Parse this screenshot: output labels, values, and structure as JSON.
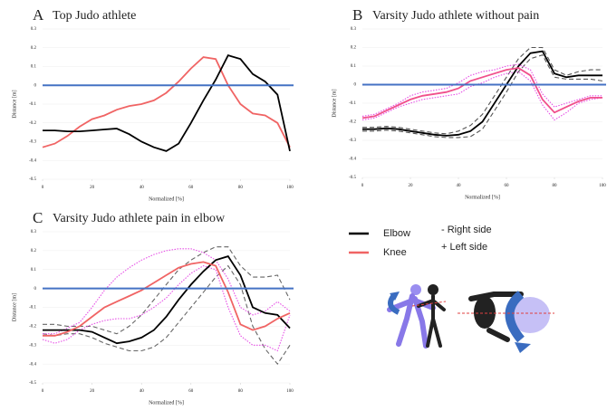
{
  "chart_data": [
    {
      "type": "line",
      "label": "A",
      "title": "Top Judo athlete",
      "x_label": "Normalized [%]",
      "y_label": "Distance [m]",
      "x": [
        0,
        5,
        10,
        15,
        20,
        25,
        30,
        35,
        40,
        45,
        50,
        55,
        60,
        65,
        70,
        75,
        80,
        85,
        90,
        95,
        100
      ],
      "xlim": [
        0,
        100
      ],
      "xticks": [
        0,
        20,
        40,
        60,
        80,
        100
      ],
      "ylim": [
        -0.5,
        0.3
      ],
      "yticks": [
        -0.5,
        -0.4,
        -0.3,
        -0.2,
        -0.1,
        0,
        0.1,
        0.2,
        0.3
      ],
      "grid": true,
      "reference_lines": [
        {
          "value": 0,
          "color": "#4472c4"
        }
      ],
      "series": [
        {
          "color": "#f06464",
          "style": "solid",
          "values": [
            -0.33,
            -0.31,
            -0.27,
            -0.22,
            -0.18,
            -0.16,
            -0.13,
            -0.11,
            -0.1,
            -0.08,
            -0.04,
            0.02,
            0.09,
            0.15,
            0.14,
            0.0,
            -0.1,
            -0.15,
            -0.16,
            -0.2,
            -0.33
          ]
        },
        {
          "color": "#000000",
          "style": "solid",
          "values": [
            -0.24,
            -0.24,
            -0.245,
            -0.245,
            -0.24,
            -0.235,
            -0.23,
            -0.26,
            -0.3,
            -0.33,
            -0.35,
            -0.31,
            -0.2,
            -0.08,
            0.03,
            0.16,
            0.14,
            0.06,
            0.02,
            -0.05,
            -0.35
          ]
        }
      ]
    },
    {
      "type": "line",
      "label": "B",
      "title": "Varsity Judo athlete without pain",
      "x_label": "Normalized [%]",
      "y_label": "Distance [m]",
      "x": [
        0,
        5,
        10,
        15,
        20,
        25,
        30,
        35,
        40,
        45,
        50,
        55,
        60,
        65,
        70,
        75,
        80,
        85,
        90,
        95,
        100
      ],
      "xlim": [
        0,
        100
      ],
      "xticks": [
        0,
        20,
        40,
        60,
        80,
        100
      ],
      "ylim": [
        -0.5,
        0.3
      ],
      "yticks": [
        -0.5,
        -0.4,
        -0.3,
        -0.2,
        -0.1,
        0,
        0.1,
        0.2,
        0.3
      ],
      "grid": true,
      "reference_lines": [
        {
          "value": 0,
          "color": "#4472c4"
        }
      ],
      "series": [
        {
          "color": "#555555",
          "style": "dashed",
          "values": [
            -0.23,
            -0.23,
            -0.225,
            -0.23,
            -0.24,
            -0.25,
            -0.26,
            -0.265,
            -0.25,
            -0.22,
            -0.16,
            -0.06,
            0.04,
            0.14,
            0.2,
            0.2,
            0.08,
            0.05,
            0.07,
            0.08,
            0.08
          ]
        },
        {
          "color": "#555555",
          "style": "dashed",
          "values": [
            -0.25,
            -0.25,
            -0.245,
            -0.25,
            -0.26,
            -0.27,
            -0.28,
            -0.285,
            -0.285,
            -0.28,
            -0.24,
            -0.14,
            -0.04,
            0.07,
            0.14,
            0.16,
            0.04,
            0.03,
            0.03,
            0.03,
            0.02
          ]
        },
        {
          "color": "#e64fe6",
          "style": "dotted",
          "values": [
            -0.17,
            -0.16,
            -0.13,
            -0.1,
            -0.06,
            -0.04,
            -0.03,
            -0.02,
            0.01,
            0.05,
            0.07,
            0.08,
            0.1,
            0.11,
            0.08,
            -0.05,
            -0.12,
            -0.1,
            -0.08,
            -0.06,
            -0.06
          ]
        },
        {
          "color": "#e64fe6",
          "style": "dotted",
          "values": [
            -0.19,
            -0.18,
            -0.15,
            -0.12,
            -0.1,
            -0.08,
            -0.07,
            -0.06,
            -0.05,
            -0.01,
            0.01,
            0.04,
            0.06,
            0.07,
            0.02,
            -0.11,
            -0.19,
            -0.15,
            -0.1,
            -0.08,
            -0.07
          ]
        },
        {
          "color": "#000000",
          "style": "solid",
          "values": [
            -0.24,
            -0.24,
            -0.235,
            -0.24,
            -0.25,
            -0.26,
            -0.27,
            -0.275,
            -0.27,
            -0.25,
            -0.2,
            -0.1,
            0.0,
            0.1,
            0.17,
            0.18,
            0.06,
            0.04,
            0.05,
            0.05,
            0.05
          ]
        },
        {
          "color": "#f0508c",
          "style": "solid",
          "values": [
            -0.18,
            -0.17,
            -0.14,
            -0.11,
            -0.08,
            -0.06,
            -0.05,
            -0.04,
            -0.02,
            0.02,
            0.04,
            0.06,
            0.08,
            0.09,
            0.05,
            -0.08,
            -0.15,
            -0.12,
            -0.09,
            -0.07,
            -0.07
          ]
        }
      ]
    },
    {
      "type": "line",
      "label": "C",
      "title": "Varsity Judo athlete pain in elbow",
      "x_label": "Normalized [%]",
      "y_label": "Distance [m]",
      "x": [
        0,
        5,
        10,
        15,
        20,
        25,
        30,
        35,
        40,
        45,
        50,
        55,
        60,
        65,
        70,
        75,
        80,
        85,
        90,
        95,
        100
      ],
      "xlim": [
        0,
        100
      ],
      "xticks": [
        0,
        20,
        40,
        60,
        80,
        100
      ],
      "ylim": [
        -0.5,
        0.3
      ],
      "yticks": [
        -0.5,
        -0.4,
        -0.3,
        -0.2,
        -0.1,
        0,
        0.1,
        0.2,
        0.3
      ],
      "grid": true,
      "reference_lines": [
        {
          "value": 0,
          "color": "#4472c4"
        }
      ],
      "series": [
        {
          "color": "#666666",
          "style": "dashed",
          "values": [
            -0.19,
            -0.19,
            -0.2,
            -0.2,
            -0.2,
            -0.22,
            -0.24,
            -0.2,
            -0.14,
            -0.06,
            0.02,
            0.1,
            0.15,
            0.19,
            0.22,
            0.22,
            0.12,
            0.06,
            0.06,
            0.07,
            -0.06
          ]
        },
        {
          "color": "#666666",
          "style": "dashed",
          "values": [
            -0.24,
            -0.25,
            -0.24,
            -0.24,
            -0.26,
            -0.29,
            -0.31,
            -0.33,
            -0.33,
            -0.31,
            -0.26,
            -0.18,
            -0.1,
            -0.02,
            0.06,
            0.12,
            0.02,
            -0.2,
            -0.32,
            -0.4,
            -0.3
          ]
        },
        {
          "color": "#e64fe6",
          "style": "dotted",
          "values": [
            -0.24,
            -0.24,
            -0.21,
            -0.18,
            -0.1,
            -0.01,
            0.06,
            0.11,
            0.15,
            0.18,
            0.2,
            0.21,
            0.21,
            0.19,
            0.15,
            0.05,
            -0.1,
            -0.14,
            -0.12,
            -0.07,
            -0.12
          ]
        },
        {
          "color": "#e64fe6",
          "style": "dotted",
          "values": [
            -0.27,
            -0.29,
            -0.27,
            -0.22,
            -0.19,
            -0.17,
            -0.16,
            -0.16,
            -0.14,
            -0.1,
            -0.05,
            0.02,
            0.08,
            0.12,
            0.1,
            -0.1,
            -0.25,
            -0.3,
            -0.3,
            -0.33,
            -0.14
          ]
        },
        {
          "color": "#000000",
          "style": "solid",
          "values": [
            -0.22,
            -0.22,
            -0.22,
            -0.22,
            -0.23,
            -0.26,
            -0.29,
            -0.28,
            -0.26,
            -0.22,
            -0.15,
            -0.06,
            0.02,
            0.09,
            0.15,
            0.17,
            0.07,
            -0.1,
            -0.13,
            -0.14,
            -0.21
          ]
        },
        {
          "color": "#f06464",
          "style": "solid",
          "values": [
            -0.25,
            -0.25,
            -0.23,
            -0.2,
            -0.15,
            -0.1,
            -0.07,
            -0.04,
            -0.01,
            0.03,
            0.07,
            0.11,
            0.13,
            0.14,
            0.12,
            -0.02,
            -0.19,
            -0.22,
            -0.2,
            -0.16,
            -0.13
          ]
        }
      ]
    }
  ],
  "legend": {
    "items": [
      {
        "label": "Elbow",
        "color": "#000000"
      },
      {
        "label": "Knee",
        "color": "#f06464"
      }
    ],
    "notes": [
      "-   Right side",
      "+   Left side"
    ]
  }
}
